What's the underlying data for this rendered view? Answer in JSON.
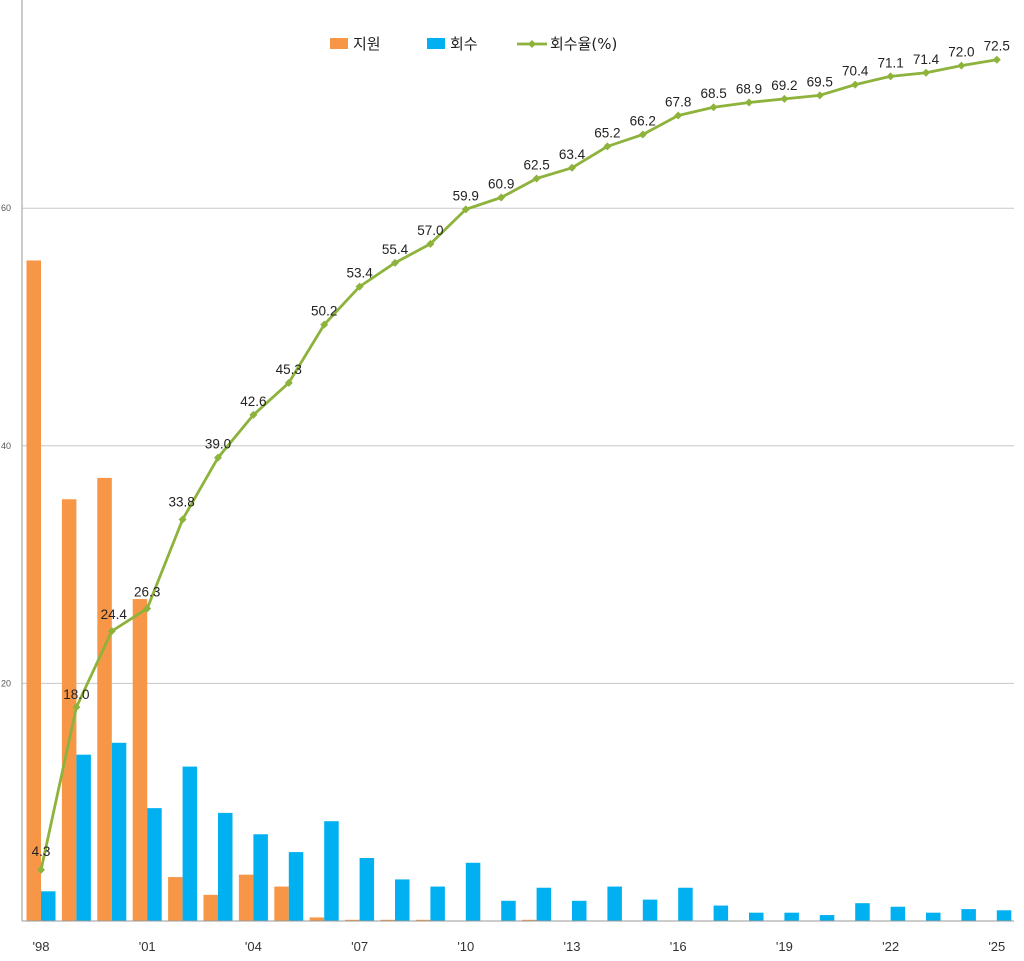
{
  "chart_data": {
    "type": "bar",
    "title": "",
    "xlabel": "",
    "ylabel": "",
    "x": [
      "'98",
      "'99",
      "'00",
      "'01",
      "'02",
      "'03",
      "'04",
      "'05",
      "'06",
      "'07",
      "'08",
      "'09",
      "'10",
      "'11",
      "'12",
      "'13",
      "'14",
      "'15",
      "'16",
      "'17",
      "'18",
      "'19",
      "'20",
      "'21",
      "'22",
      "'23",
      "'24",
      "'25"
    ],
    "xtick_labels": [
      "'98",
      "",
      "",
      "'01",
      "",
      "",
      "'04",
      "",
      "",
      "'07",
      "",
      "",
      "'10",
      "",
      "",
      "'13",
      "",
      "",
      "'16",
      "",
      "",
      "'19",
      "",
      "",
      "'22",
      "",
      "",
      "'25"
    ],
    "yticks": [
      20,
      40,
      60
    ],
    "ytick_labels": [
      "20",
      "40",
      "60"
    ],
    "ylim": [
      0,
      78
    ],
    "grid": true,
    "legend_position": "top-center",
    "series": [
      {
        "name": "지원",
        "type": "bar",
        "color": "#f79646",
        "values": [
          55.6,
          35.5,
          37.3,
          27.1,
          3.7,
          2.2,
          3.9,
          2.9,
          0.3,
          0.1,
          0.1,
          0.1,
          0,
          0,
          0.1,
          0,
          0,
          0,
          0,
          0,
          0,
          0,
          0,
          0,
          0,
          0,
          0,
          0
        ]
      },
      {
        "name": "회수",
        "type": "bar",
        "color": "#00b0f0",
        "values": [
          2.5,
          14.0,
          15.0,
          9.5,
          13.0,
          9.1,
          7.3,
          5.8,
          8.4,
          5.3,
          3.5,
          2.9,
          4.9,
          1.7,
          2.8,
          1.7,
          2.9,
          1.8,
          2.8,
          1.3,
          0.7,
          0.7,
          0.5,
          1.5,
          1.2,
          0.7,
          1.0,
          0.9
        ]
      },
      {
        "name": "회수율(%)",
        "type": "line",
        "color": "#8db33c",
        "values": [
          4.3,
          18.0,
          24.4,
          26.3,
          33.8,
          39.0,
          42.6,
          45.3,
          50.2,
          53.4,
          55.4,
          57.0,
          59.9,
          60.9,
          62.5,
          63.4,
          65.2,
          66.2,
          67.8,
          68.5,
          68.9,
          69.2,
          69.5,
          70.4,
          71.1,
          71.4,
          72.0,
          72.5
        ],
        "labels": [
          "4.3",
          "18.0",
          "24.4",
          "26.3",
          "33.8",
          "39.0",
          "42.6",
          "45.3",
          "50.2",
          "53.4",
          "55.4",
          "57.0",
          "59.9",
          "60.9",
          "62.5",
          "63.4",
          "65.2",
          "66.2",
          "67.8",
          "68.5",
          "68.9",
          "69.2",
          "69.5",
          "70.4",
          "71.1",
          "71.4",
          "72.0",
          "72.5"
        ]
      }
    ]
  }
}
